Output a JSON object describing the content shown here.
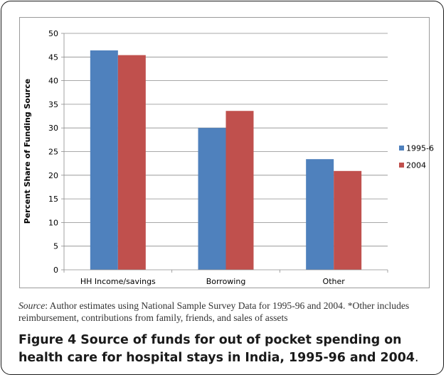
{
  "chart_data": {
    "type": "bar",
    "categories": [
      "HH Income/savings",
      "Borrowing",
      "Other"
    ],
    "series": [
      {
        "name": "1995-6",
        "values": [
          46.4,
          30.0,
          23.4
        ],
        "color": "#4F81BD"
      },
      {
        "name": "2004",
        "values": [
          45.4,
          33.6,
          20.9
        ],
        "color": "#C0504D"
      }
    ],
    "ylabel": "Percent Share of Funding Source",
    "xlabel": "",
    "ylim": [
      0,
      50
    ],
    "yticks": [
      0,
      5,
      10,
      15,
      20,
      25,
      30,
      35,
      40,
      45,
      50
    ],
    "grid": true,
    "legend_position": "right"
  },
  "source": {
    "label": "Source",
    "text": ": Author estimates using National Sample Survey Data for 1995-96 and 2004. *Other includes reimbursement, contributions from family, friends, and sales of assets"
  },
  "caption": {
    "label": "Figure 4",
    "title": " Source of funds for out of pocket spending on health care for hospital stays in India, 1995-96 and 2004",
    "end": "."
  }
}
